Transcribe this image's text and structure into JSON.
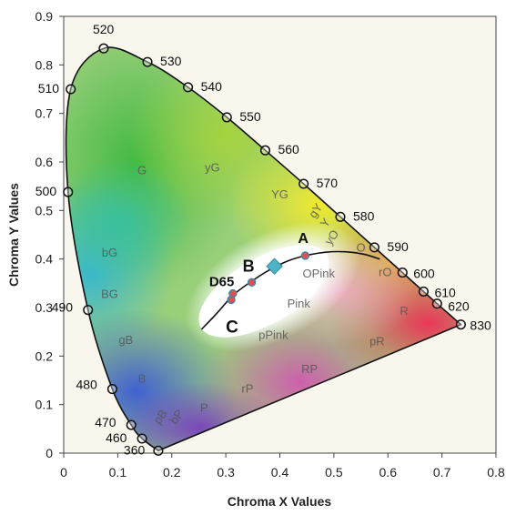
{
  "chart_data": {
    "type": "scatter",
    "title": "",
    "xlabel": "Chroma X Values",
    "ylabel": "Chroma Y Values",
    "xlim": [
      0,
      0.8
    ],
    "ylim": [
      0,
      0.9
    ],
    "x_ticks": [
      "0",
      "0.1",
      "0.2",
      "0.3",
      "0.4",
      "0.5",
      "0.6",
      "0.7",
      "0.8"
    ],
    "y_ticks": [
      "0",
      "0.1",
      "0.2",
      "0.3",
      "0.4",
      "0.5",
      "0.6",
      "0.7",
      "0.8",
      "0.9"
    ],
    "spectral_locus": [
      {
        "label": "360",
        "x": 0.175,
        "y": 0.005
      },
      {
        "label": "460",
        "x": 0.145,
        "y": 0.03
      },
      {
        "label": "470",
        "x": 0.125,
        "y": 0.058
      },
      {
        "label": "480",
        "x": 0.09,
        "y": 0.132
      },
      {
        "label": "490",
        "x": 0.045,
        "y": 0.295
      },
      {
        "label": "500",
        "x": 0.008,
        "y": 0.538
      },
      {
        "label": "510",
        "x": 0.013,
        "y": 0.75
      },
      {
        "label": "520",
        "x": 0.074,
        "y": 0.834
      },
      {
        "label": "530",
        "x": 0.155,
        "y": 0.806
      },
      {
        "label": "540",
        "x": 0.23,
        "y": 0.754
      },
      {
        "label": "550",
        "x": 0.302,
        "y": 0.692
      },
      {
        "label": "560",
        "x": 0.373,
        "y": 0.624
      },
      {
        "label": "570",
        "x": 0.444,
        "y": 0.555
      },
      {
        "label": "580",
        "x": 0.512,
        "y": 0.487
      },
      {
        "label": "590",
        "x": 0.575,
        "y": 0.424
      },
      {
        "label": "600",
        "x": 0.627,
        "y": 0.372
      },
      {
        "label": "610",
        "x": 0.666,
        "y": 0.333
      },
      {
        "label": "620",
        "x": 0.691,
        "y": 0.308
      },
      {
        "label": "830",
        "x": 0.735,
        "y": 0.265
      }
    ],
    "planckian_locus": [
      {
        "x": 0.255,
        "y": 0.255
      },
      {
        "x": 0.285,
        "y": 0.29
      },
      {
        "x": 0.313,
        "y": 0.325
      },
      {
        "x": 0.345,
        "y": 0.352
      },
      {
        "x": 0.38,
        "y": 0.377
      },
      {
        "x": 0.415,
        "y": 0.396
      },
      {
        "x": 0.448,
        "y": 0.407
      },
      {
        "x": 0.485,
        "y": 0.414
      },
      {
        "x": 0.52,
        "y": 0.415
      },
      {
        "x": 0.555,
        "y": 0.41
      },
      {
        "x": 0.585,
        "y": 0.4
      }
    ],
    "illuminants": [
      {
        "label": "A",
        "x": 0.447,
        "y": 0.407
      },
      {
        "label": "B",
        "x": 0.348,
        "y": 0.352
      },
      {
        "label": "C",
        "x": 0.31,
        "y": 0.316
      },
      {
        "label": "D65",
        "x": 0.313,
        "y": 0.329
      }
    ],
    "equal_energy_point": {
      "x": 0.39,
      "y": 0.385
    },
    "regions": [
      {
        "label": "G",
        "x": 0.145,
        "y": 0.575
      },
      {
        "label": "yG",
        "x": 0.275,
        "y": 0.58
      },
      {
        "label": "YG",
        "x": 0.4,
        "y": 0.525
      },
      {
        "label": "gY",
        "x": 0.472,
        "y": 0.495
      },
      {
        "label": "Y",
        "x": 0.49,
        "y": 0.47
      },
      {
        "label": "yO",
        "x": 0.502,
        "y": 0.44
      },
      {
        "label": "O",
        "x": 0.55,
        "y": 0.415
      },
      {
        "label": "rO",
        "x": 0.595,
        "y": 0.365
      },
      {
        "label": "OPink",
        "x": 0.472,
        "y": 0.362
      },
      {
        "label": "bG",
        "x": 0.085,
        "y": 0.405
      },
      {
        "label": "BG",
        "x": 0.085,
        "y": 0.32
      },
      {
        "label": "Pink",
        "x": 0.435,
        "y": 0.3
      },
      {
        "label": "R",
        "x": 0.63,
        "y": 0.285
      },
      {
        "label": "pPink",
        "x": 0.388,
        "y": 0.235
      },
      {
        "label": "pR",
        "x": 0.58,
        "y": 0.222
      },
      {
        "label": "gB",
        "x": 0.115,
        "y": 0.225
      },
      {
        "label": "RP",
        "x": 0.455,
        "y": 0.165
      },
      {
        "label": "B",
        "x": 0.145,
        "y": 0.145
      },
      {
        "label": "rP",
        "x": 0.34,
        "y": 0.125
      },
      {
        "label": "P",
        "x": 0.26,
        "y": 0.085
      },
      {
        "label": "pB",
        "x": 0.185,
        "y": 0.07
      },
      {
        "label": "bP",
        "x": 0.215,
        "y": 0.07
      }
    ],
    "legend": "none",
    "grid": false
  }
}
